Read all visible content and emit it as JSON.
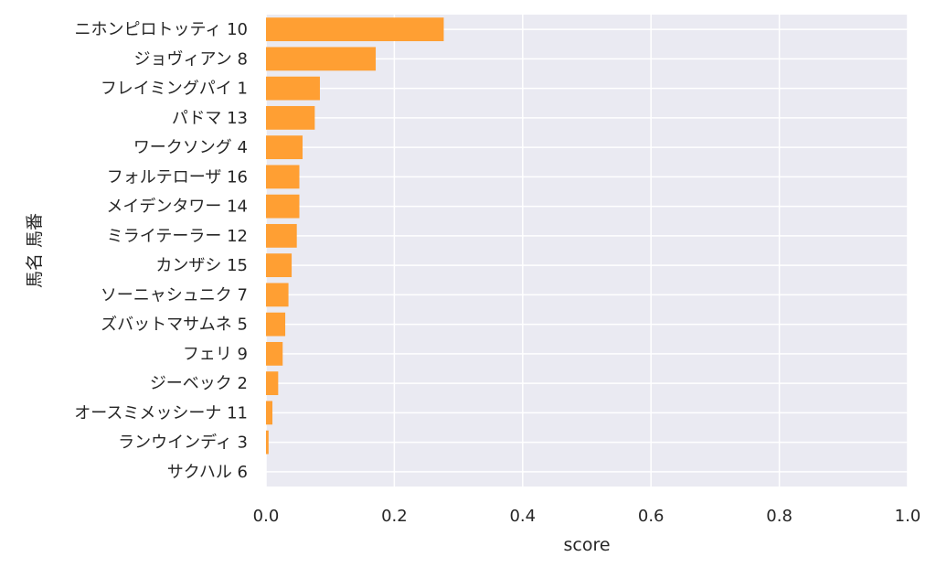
{
  "chart_data": {
    "type": "bar",
    "orientation": "horizontal",
    "categories": [
      "ニホンピロトッティ 10",
      "ジョヴィアン 8",
      "フレイミングパイ 1",
      "パドマ 13",
      "ワークソング 4",
      "フォルテローザ 16",
      "メイデンタワー 14",
      "ミライテーラー 12",
      "カンザシ 15",
      "ソーニャシュニク 7",
      "ズバットマサムネ 5",
      "フェリ 9",
      "ジーベック 2",
      "オースミメッシーナ 11",
      "ランウインディ 3",
      "サクハル 6"
    ],
    "values": [
      0.277,
      0.171,
      0.084,
      0.076,
      0.057,
      0.052,
      0.052,
      0.048,
      0.04,
      0.035,
      0.03,
      0.026,
      0.019,
      0.01,
      0.004,
      0.0
    ],
    "xlabel": "score",
    "ylabel": "馬名 馬番",
    "xlim": [
      0,
      1.0
    ],
    "xticks": [
      "0.0",
      "0.2",
      "0.4",
      "0.6",
      "0.8",
      "1.0"
    ],
    "grid": true,
    "colors": {
      "bar": "#ff9f33",
      "plot_background": "#eaeaf2",
      "grid": "#ffffff",
      "text": "#262626"
    }
  }
}
